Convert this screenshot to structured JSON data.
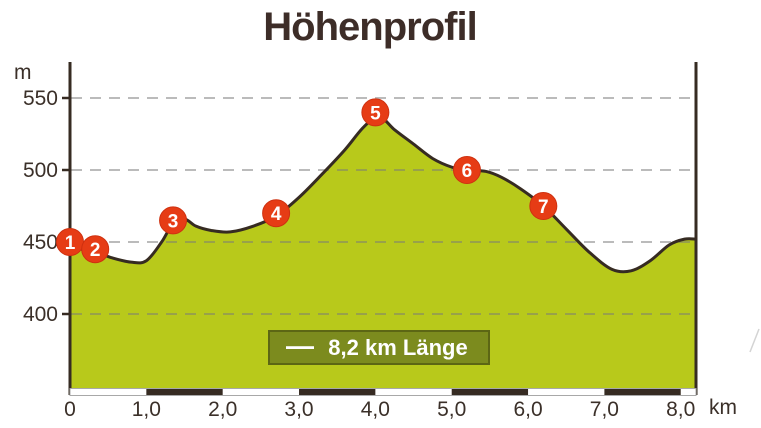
{
  "title": "Höhenprofil",
  "axis": {
    "y_unit": "m",
    "x_unit": "km"
  },
  "legend": {
    "dash": "—",
    "label": "8,2 km Länge"
  },
  "colors": {
    "area_fill": "#b8c91b",
    "profile_line": "#362b22",
    "axis_line": "#362b22",
    "grid_line": "#7a7a7a",
    "marker_fill": "#e63c15",
    "marker_text": "#ffffff",
    "label_text": "#3b3029",
    "scale_bar_dark": "#362b22",
    "scale_bar_light": "#ffffff",
    "scale_bar_border": "#a8a8a8",
    "legend_bg": "#7c8b1e",
    "legend_border": "#5c6614",
    "title_text": "#3d2d28"
  },
  "chart_data": {
    "type": "area",
    "title": "Höhenprofil",
    "xlabel": "km",
    "ylabel": "m",
    "xlim": [
      0,
      8.2
    ],
    "ylim_shown": [
      400,
      550
    ],
    "grid": "dashed horizontal",
    "legend_position": "bottom-center",
    "route_length_km": 8.2,
    "y_ticks": [
      550,
      500,
      450,
      400
    ],
    "x_ticks": [
      "0",
      "1,0",
      "2,0",
      "3,0",
      "4,0",
      "5,0",
      "6,0",
      "7,0",
      "8,0"
    ],
    "x_tick_values": [
      0,
      1,
      2,
      3,
      4,
      5,
      6,
      7,
      8
    ],
    "profile_km_m": [
      [
        0.0,
        449
      ],
      [
        0.15,
        445
      ],
      [
        0.33,
        443
      ],
      [
        0.55,
        439
      ],
      [
        0.8,
        436
      ],
      [
        1.0,
        437
      ],
      [
        1.2,
        450
      ],
      [
        1.35,
        463
      ],
      [
        1.5,
        466
      ],
      [
        1.65,
        461
      ],
      [
        1.85,
        458
      ],
      [
        2.1,
        457
      ],
      [
        2.4,
        461
      ],
      [
        2.7,
        468
      ],
      [
        3.0,
        481
      ],
      [
        3.3,
        497
      ],
      [
        3.6,
        514
      ],
      [
        3.85,
        530
      ],
      [
        4.05,
        537
      ],
      [
        4.25,
        528
      ],
      [
        4.5,
        518
      ],
      [
        4.75,
        508
      ],
      [
        5.0,
        502
      ],
      [
        5.2,
        500
      ],
      [
        5.45,
        499
      ],
      [
        5.65,
        495
      ],
      [
        5.9,
        487
      ],
      [
        6.2,
        475
      ],
      [
        6.5,
        459
      ],
      [
        6.8,
        443
      ],
      [
        7.1,
        431
      ],
      [
        7.35,
        430
      ],
      [
        7.6,
        437
      ],
      [
        7.85,
        448
      ],
      [
        8.05,
        452
      ],
      [
        8.2,
        452
      ]
    ],
    "markers": [
      {
        "label": "1",
        "km": 0.0,
        "m": 450
      },
      {
        "label": "2",
        "km": 0.33,
        "m": 445
      },
      {
        "label": "3",
        "km": 1.35,
        "m": 465
      },
      {
        "label": "4",
        "km": 2.7,
        "m": 470
      },
      {
        "label": "5",
        "km": 4.0,
        "m": 540
      },
      {
        "label": "6",
        "km": 5.2,
        "m": 500
      },
      {
        "label": "7",
        "km": 6.2,
        "m": 475
      }
    ],
    "scale_bar_dark_segments_km": [
      [
        1,
        2
      ],
      [
        3,
        4
      ],
      [
        5,
        6
      ],
      [
        7,
        8
      ]
    ]
  }
}
